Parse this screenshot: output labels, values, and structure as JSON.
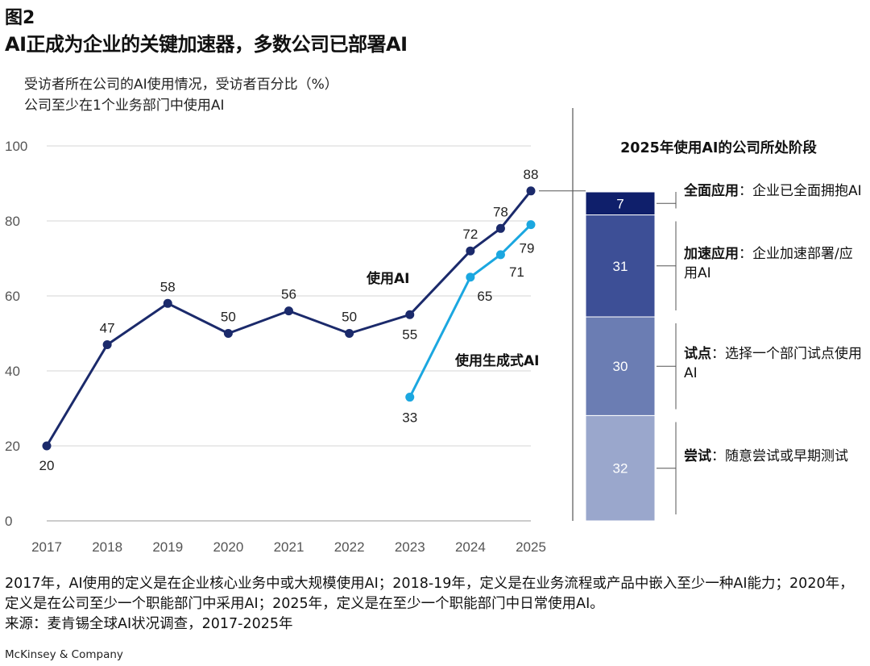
{
  "figure_label": "图2",
  "figure_title": "AI正成为企业的关键加速器，多数公司已部署AI",
  "subtitle_line1": "受访者所在公司的AI使用情况，受访者百分比（%）",
  "subtitle_line2": "公司至少在1个业务部门中使用AI",
  "chart_data": [
    {
      "type": "line",
      "title": "受访者所在公司的AI使用情况，受访者百分比（%）",
      "xlabel": "",
      "ylabel": "",
      "ylim": [
        0,
        100
      ],
      "yticks": [
        "0",
        "20",
        "40",
        "60",
        "80",
        "100"
      ],
      "xticks": [
        "2017",
        "2018",
        "2019",
        "2020",
        "2021",
        "2022",
        "2023",
        "2024",
        "2025"
      ],
      "grid": true,
      "series": [
        {
          "name": "使用AI",
          "color": "#1b2a6b",
          "x": [
            2017,
            2018,
            2019,
            2020,
            2021,
            2022,
            2023,
            2024,
            2024.5,
            2025
          ],
          "values": [
            20,
            47,
            58,
            50,
            56,
            50,
            55,
            72,
            78,
            88
          ],
          "labels": [
            "20",
            "47",
            "58",
            "50",
            "56",
            "50",
            "55",
            "72",
            "78",
            "88"
          ]
        },
        {
          "name": "使用生成式AI",
          "color": "#1ba7e0",
          "x": [
            2023,
            2024,
            2024.5,
            2025
          ],
          "values": [
            33,
            65,
            71,
            79
          ],
          "labels": [
            "33",
            "65",
            "71",
            "79"
          ]
        }
      ]
    },
    {
      "type": "bar",
      "title": "2025年使用AI的公司所处阶段",
      "stacked": true,
      "segments": [
        {
          "name": "全面应用",
          "value": 7,
          "label": "7",
          "color": "#0f1f6b",
          "desc": "：企业已全面拥抱AI"
        },
        {
          "name": "加速应用",
          "value": 31,
          "label": "31",
          "color": "#3d4f96",
          "desc": "：企业加速部署/应用AI"
        },
        {
          "name": "试点",
          "value": 30,
          "label": "30",
          "color": "#6b7db3",
          "desc": "：选择一个部门试点使用AI"
        },
        {
          "name": "尝试",
          "value": 32,
          "label": "32",
          "color": "#9aa7cc",
          "desc": "：随意尝试或早期测试"
        }
      ]
    }
  ],
  "notes_line1": "2017年，AI使用的定义是在企业核心业务中或大规模使用AI；2018-19年，定义是在业务流程或产品中嵌入至少一种AI能力；2020年，定义是在公司至少一个职能部门中采用AI；2025年，定义是在至少一个职能部门中日常使用AI。",
  "source": "来源：麦肯锡全球AI状况调查，2017-2025年",
  "brand": "McKinsey & Company"
}
